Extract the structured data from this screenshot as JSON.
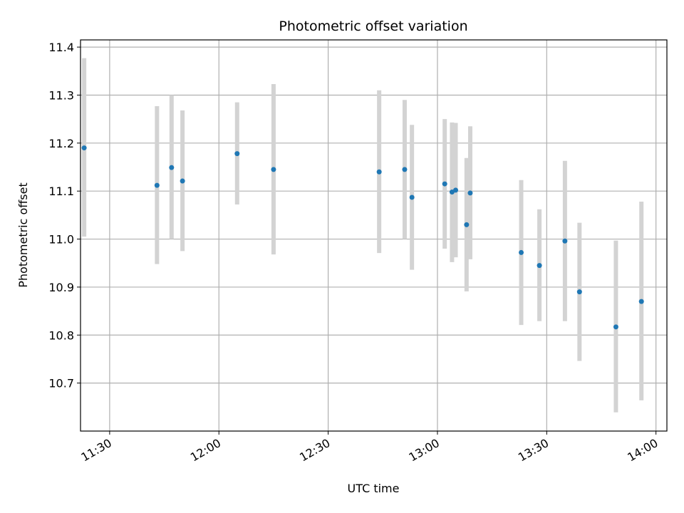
{
  "chart_data": {
    "type": "scatter",
    "title": "Photometric offset variation",
    "xlabel": "UTC time",
    "ylabel": "Photometric offset",
    "x_ticks": [
      "11:30",
      "12:00",
      "12:30",
      "13:00",
      "13:30",
      "14:00"
    ],
    "y_ticks": [
      "10.7",
      "10.8",
      "10.9",
      "11.0",
      "11.1",
      "11.2",
      "11.3",
      "11.4"
    ],
    "xlim": [
      "11:22",
      "14:03"
    ],
    "ylim": [
      10.6,
      11.415
    ],
    "grid": true,
    "colors": {
      "point": "#1f77b4",
      "errorbar": "#d3d3d3",
      "grid": "#b0b0b0"
    },
    "points": [
      {
        "x": "11:23",
        "y": 11.19,
        "yerr_low": 11.005,
        "yerr_high": 11.377
      },
      {
        "x": "11:43",
        "y": 11.112,
        "yerr_low": 10.948,
        "yerr_high": 11.277
      },
      {
        "x": "11:47",
        "y": 11.149,
        "yerr_low": 11.0,
        "yerr_high": 11.3
      },
      {
        "x": "11:50",
        "y": 11.121,
        "yerr_low": 10.975,
        "yerr_high": 11.268
      },
      {
        "x": "12:05",
        "y": 11.178,
        "yerr_low": 11.072,
        "yerr_high": 11.285
      },
      {
        "x": "12:15",
        "y": 11.145,
        "yerr_low": 10.968,
        "yerr_high": 11.323
      },
      {
        "x": "12:44",
        "y": 11.14,
        "yerr_low": 10.971,
        "yerr_high": 11.31
      },
      {
        "x": "12:51",
        "y": 11.145,
        "yerr_low": 11.0,
        "yerr_high": 11.29
      },
      {
        "x": "12:53",
        "y": 11.087,
        "yerr_low": 10.936,
        "yerr_high": 11.238
      },
      {
        "x": "13:02",
        "y": 11.115,
        "yerr_low": 10.98,
        "yerr_high": 11.25
      },
      {
        "x": "13:04",
        "y": 11.098,
        "yerr_low": 10.952,
        "yerr_high": 11.243
      },
      {
        "x": "13:05",
        "y": 11.102,
        "yerr_low": 10.962,
        "yerr_high": 11.242
      },
      {
        "x": "13:08",
        "y": 11.03,
        "yerr_low": 10.891,
        "yerr_high": 11.169
      },
      {
        "x": "13:09",
        "y": 11.096,
        "yerr_low": 10.958,
        "yerr_high": 11.235
      },
      {
        "x": "13:23",
        "y": 10.972,
        "yerr_low": 10.821,
        "yerr_high": 11.123
      },
      {
        "x": "13:28",
        "y": 10.945,
        "yerr_low": 10.829,
        "yerr_high": 11.062
      },
      {
        "x": "13:35",
        "y": 10.996,
        "yerr_low": 10.829,
        "yerr_high": 11.163
      },
      {
        "x": "13:39",
        "y": 10.89,
        "yerr_low": 10.746,
        "yerr_high": 11.034
      },
      {
        "x": "13:49",
        "y": 10.817,
        "yerr_low": 10.639,
        "yerr_high": 10.997
      },
      {
        "x": "13:56",
        "y": 10.87,
        "yerr_low": 10.664,
        "yerr_high": 11.078
      }
    ]
  }
}
